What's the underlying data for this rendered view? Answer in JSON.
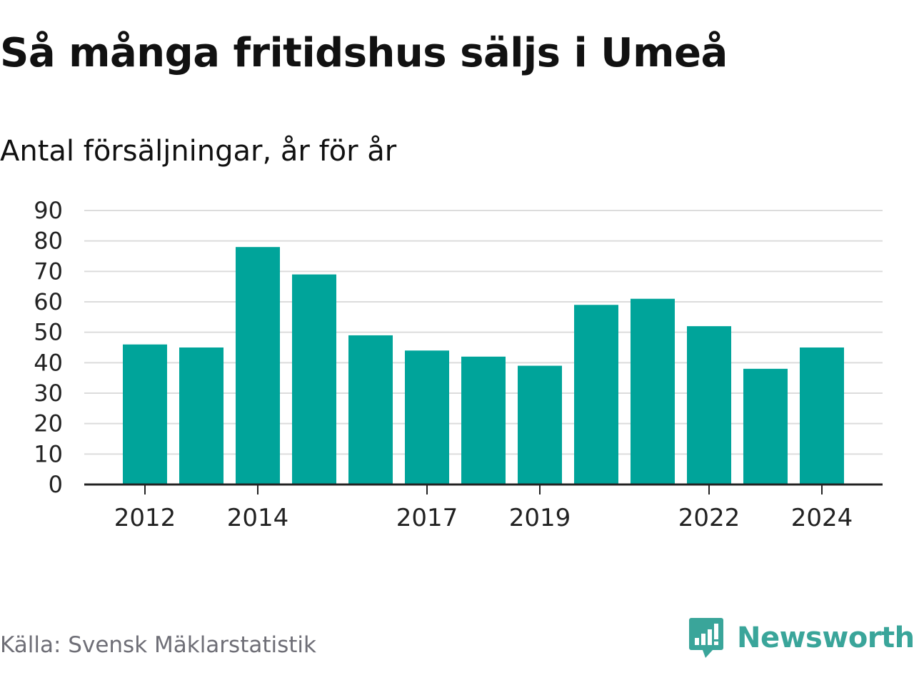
{
  "header": {
    "title": "Så många fritidshus säljs i Umeå",
    "subtitle": "Antal försäljningar, år för år"
  },
  "footer": {
    "source": "Källa: Svensk Mäklarstatistik",
    "brand": "Newsworthy",
    "brand_icon": "newsworthy-logo-icon"
  },
  "colors": {
    "bar": "#00a49a",
    "grid": "#dcdcdc",
    "axis": "#222222",
    "brand": "#3aa59a",
    "source": "#6e6e76"
  },
  "chart_data": {
    "type": "bar",
    "title": "Så många fritidshus säljs i Umeå",
    "subtitle": "Antal försäljningar, år för år",
    "xlabel": "",
    "ylabel": "",
    "categories": [
      "2012",
      "2013",
      "2014",
      "2015",
      "2016",
      "2017",
      "2018",
      "2019",
      "2020",
      "2021",
      "2022",
      "2023",
      "2024"
    ],
    "values": [
      46,
      45,
      78,
      69,
      49,
      44,
      42,
      39,
      59,
      61,
      52,
      38,
      45
    ],
    "x_tick_labels": [
      "2012",
      "2014",
      "2017",
      "2019",
      "2022",
      "2024"
    ],
    "ylim": [
      0,
      90
    ],
    "y_ticks": [
      0,
      10,
      20,
      30,
      40,
      50,
      60,
      70,
      80,
      90
    ],
    "grid": true,
    "legend": "none"
  }
}
